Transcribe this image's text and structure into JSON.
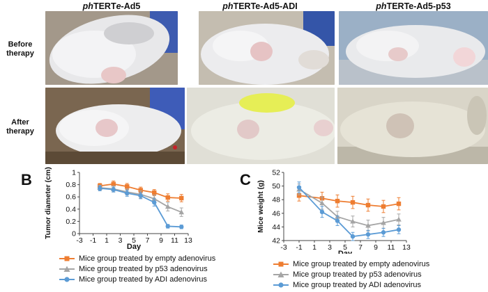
{
  "figure": {
    "columns": [
      {
        "italic": "ph",
        "rest": "TERT",
        "italic2": "e",
        "rest2": "-Ad5"
      },
      {
        "italic": "ph",
        "rest": "TERTe-Ad5-ADI",
        "italic2": "",
        "rest2": ""
      },
      {
        "italic": "ph",
        "rest": "TERTe-Ad5-p53",
        "italic2": "",
        "rest2": ""
      }
    ],
    "rows": {
      "before_line1": "Before",
      "before_line2": "therapy",
      "after_line1": "After",
      "after_line2": "therapy"
    },
    "panel_b": "B",
    "panel_c": "C"
  },
  "legend": {
    "empty": "Mice group treated by empty adenovirus",
    "p53": "Mice group treated by p53 adenovirus",
    "adi": "Mice group treated by ADI adenovirus"
  },
  "colors": {
    "empty": "#ee7d31",
    "p53": "#a5a5a5",
    "adi": "#5b9bd5"
  },
  "chart_data": [
    {
      "id": "B",
      "type": "line",
      "xlabel": "Day",
      "ylabel": "Tumor diameter (cm)",
      "xlim": [
        -3,
        13
      ],
      "xticks": [
        -3,
        -1,
        1,
        3,
        5,
        7,
        9,
        11,
        13
      ],
      "ylim": [
        0,
        1
      ],
      "yticks": [
        0,
        0.2,
        0.4,
        0.6,
        0.8,
        1
      ],
      "series": [
        {
          "key": "empty",
          "name": "Mice group treated by empty adenovirus",
          "marker": "square",
          "x": [
            0,
            2,
            4,
            6,
            8,
            10,
            12
          ],
          "y": [
            0.78,
            0.81,
            0.77,
            0.71,
            0.67,
            0.59,
            0.58
          ],
          "err": [
            0.04,
            0.05,
            0.05,
            0.05,
            0.05,
            0.06,
            0.06
          ]
        },
        {
          "key": "p53",
          "name": "Mice group treated by p53 adenovirus",
          "marker": "triangle",
          "x": [
            0,
            2,
            4,
            6,
            8,
            10,
            12
          ],
          "y": [
            0.75,
            0.73,
            0.68,
            0.64,
            0.57,
            0.44,
            0.35
          ],
          "err": [
            0.04,
            0.05,
            0.05,
            0.06,
            0.06,
            0.07,
            0.07
          ]
        },
        {
          "key": "adi",
          "name": "Mice group treated by ADI adenovirus",
          "marker": "circle",
          "x": [
            0,
            2,
            4,
            6,
            8,
            10,
            12
          ],
          "y": [
            0.74,
            0.72,
            0.66,
            0.62,
            0.51,
            0.12,
            0.11
          ],
          "err": [
            0.04,
            0.04,
            0.05,
            0.05,
            0.06,
            0.03,
            0.03
          ]
        }
      ]
    },
    {
      "id": "C",
      "type": "line",
      "xlabel": "Day",
      "ylabel": "Mice weight (g)",
      "xlim": [
        -3,
        13
      ],
      "xticks": [
        -3,
        -1,
        1,
        3,
        5,
        7,
        9,
        11,
        13
      ],
      "ylim": [
        42,
        52
      ],
      "yticks": [
        42,
        44,
        46,
        48,
        50,
        52
      ],
      "series": [
        {
          "key": "empty",
          "name": "Mice group treated by empty adenovirus",
          "marker": "square",
          "x": [
            -1,
            2,
            4,
            6,
            8,
            10,
            12
          ],
          "y": [
            48.6,
            48.2,
            47.8,
            47.6,
            47.2,
            47.0,
            47.4
          ],
          "err": [
            0.8,
            0.9,
            0.9,
            0.9,
            0.9,
            0.9,
            0.9
          ]
        },
        {
          "key": "p53",
          "name": "Mice group treated by p53 adenovirus",
          "marker": "triangle",
          "x": [
            -1,
            2,
            4,
            6,
            8,
            10,
            12
          ],
          "y": [
            49.5,
            47.5,
            45.5,
            44.8,
            44.2,
            44.6,
            45.1
          ],
          "err": [
            0.8,
            0.9,
            0.8,
            0.8,
            0.8,
            0.8,
            0.8
          ]
        },
        {
          "key": "adi",
          "name": "Mice group treated by ADI adenovirus",
          "marker": "circle",
          "x": [
            -1,
            2,
            4,
            6,
            8,
            10,
            12
          ],
          "y": [
            49.8,
            46.2,
            44.9,
            42.6,
            42.9,
            43.2,
            43.6
          ],
          "err": [
            0.8,
            0.8,
            0.7,
            0.6,
            0.6,
            0.6,
            0.6
          ]
        }
      ]
    }
  ]
}
